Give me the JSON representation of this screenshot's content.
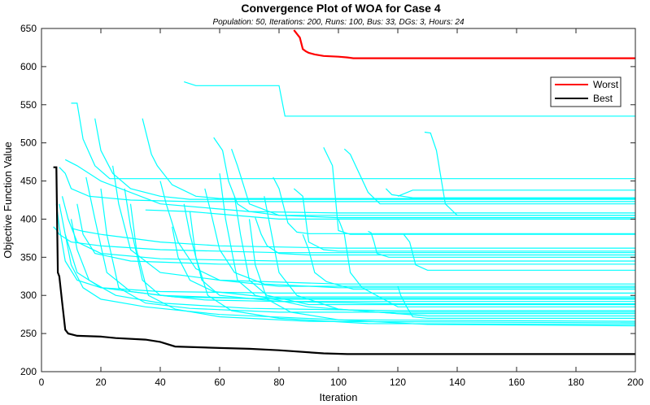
{
  "chart_data": {
    "type": "line",
    "title": "Convergence Plot of WOA for Case 4",
    "subtitle": "Population: 50, Iterations: 200, Runs: 100, Bus: 33, DGs: 3, Hours: 24",
    "xlabel": "Iteration",
    "ylabel": "Objective Function Value",
    "xlim": [
      0,
      200
    ],
    "ylim": [
      200,
      650
    ],
    "xticks": [
      "0",
      "20",
      "40",
      "60",
      "80",
      "100",
      "120",
      "140",
      "160",
      "180",
      "200"
    ],
    "yticks": [
      "200",
      "250",
      "300",
      "350",
      "400",
      "450",
      "500",
      "550",
      "600",
      "650"
    ],
    "grid": false,
    "legend_position": "top-right",
    "colors": {
      "worst": "#ff0000",
      "best": "#000000",
      "runs": "#00ffff"
    },
    "legend": [
      {
        "label": "Worst",
        "color": "#ff0000"
      },
      {
        "label": "Best",
        "color": "#000000"
      }
    ],
    "series": [
      {
        "name": "Worst",
        "color": "#ff0000",
        "x": [
          85,
          87,
          88,
          89,
          90,
          92,
          95,
          100,
          103,
          105,
          200
        ],
        "y": [
          648,
          638,
          623,
          620,
          618,
          616,
          614,
          613,
          612,
          611,
          611
        ]
      },
      {
        "name": "Best",
        "color": "#000000",
        "x": [
          4,
          5,
          5.5,
          6,
          7,
          8,
          9,
          12,
          20,
          25,
          35,
          40,
          45,
          60,
          70,
          80,
          95,
          103,
          200
        ],
        "y": [
          468,
          468,
          330,
          325,
          290,
          255,
          250,
          247,
          246,
          244,
          242,
          239,
          233,
          231,
          230,
          228,
          224,
          223,
          223
        ]
      }
    ],
    "runs": [
      {
        "x": [
          48,
          52,
          80,
          82,
          200
        ],
        "y": [
          580,
          575,
          575,
          535,
          535
        ]
      },
      {
        "x": [
          10,
          12,
          14,
          18,
          23,
          200
        ],
        "y": [
          552,
          552,
          505,
          470,
          453,
          453
        ]
      },
      {
        "x": [
          129,
          131,
          133,
          136,
          140,
          200
        ],
        "y": [
          514,
          513,
          490,
          420,
          405,
          405
        ]
      },
      {
        "x": [
          102,
          104,
          110,
          114,
          200
        ],
        "y": [
          492,
          485,
          435,
          420,
          420
        ]
      },
      {
        "x": [
          34,
          37,
          39,
          44,
          52,
          60,
          200
        ],
        "y": [
          532,
          485,
          470,
          445,
          430,
          427,
          427
        ]
      },
      {
        "x": [
          18,
          20,
          24,
          30,
          40,
          50,
          200
        ],
        "y": [
          532,
          490,
          460,
          440,
          430,
          426,
          426
        ]
      },
      {
        "x": [
          6,
          8,
          10,
          16,
          30,
          50,
          200
        ],
        "y": [
          468,
          460,
          440,
          430,
          425,
          423,
          423
        ]
      },
      {
        "x": [
          8,
          12,
          20,
          40,
          70,
          100,
          200
        ],
        "y": [
          478,
          470,
          450,
          420,
          410,
          408,
          408
        ]
      },
      {
        "x": [
          58,
          61,
          63,
          66,
          70,
          80,
          200
        ],
        "y": [
          507,
          490,
          450,
          420,
          410,
          405,
          405
        ]
      },
      {
        "x": [
          64,
          66,
          70,
          80,
          100,
          200
        ],
        "y": [
          492,
          470,
          420,
          405,
          402,
          402
        ]
      },
      {
        "x": [
          120,
          125,
          200
        ],
        "y": [
          430,
          438,
          438
        ]
      },
      {
        "x": [
          116,
          118,
          125,
          200
        ],
        "y": [
          440,
          432,
          428,
          428
        ]
      },
      {
        "x": [
          35,
          50,
          80,
          200
        ],
        "y": [
          412,
          410,
          400,
          400
        ]
      },
      {
        "x": [
          78,
          80,
          83,
          86,
          90,
          200
        ],
        "y": [
          455,
          440,
          395,
          383,
          381,
          381
        ]
      },
      {
        "x": [
          95,
          98,
          100,
          104,
          200
        ],
        "y": [
          494,
          470,
          385,
          380,
          380
        ]
      },
      {
        "x": [
          110,
          111,
          112,
          113,
          117,
          200
        ],
        "y": [
          384,
          382,
          370,
          355,
          350,
          350
        ]
      },
      {
        "x": [
          122,
          124,
          126,
          130,
          200
        ],
        "y": [
          380,
          370,
          340,
          333,
          333
        ]
      },
      {
        "x": [
          85,
          88,
          90,
          95,
          100,
          200
        ],
        "y": [
          440,
          430,
          370,
          360,
          358,
          358
        ]
      },
      {
        "x": [
          72,
          74,
          76,
          80,
          90,
          200
        ],
        "y": [
          402,
          380,
          365,
          355,
          353,
          353
        ]
      },
      {
        "x": [
          10,
          14,
          20,
          30,
          40,
          60,
          100,
          200
        ],
        "y": [
          388,
          384,
          380,
          375,
          370,
          365,
          362,
          362
        ]
      },
      {
        "x": [
          4,
          5,
          6,
          10,
          20,
          40,
          80,
          200
        ],
        "y": [
          390,
          386,
          380,
          370,
          365,
          360,
          356,
          356
        ]
      },
      {
        "x": [
          7,
          9,
          12,
          20,
          40,
          80,
          200
        ],
        "y": [
          430,
          400,
          370,
          355,
          348,
          345,
          345
        ]
      },
      {
        "x": [
          12,
          14,
          18,
          30,
          60,
          200
        ],
        "y": [
          420,
          380,
          355,
          345,
          341,
          341
        ]
      },
      {
        "x": [
          24,
          26,
          30,
          40,
          60,
          100,
          200
        ],
        "y": [
          470,
          420,
          360,
          330,
          320,
          315,
          315
        ]
      },
      {
        "x": [
          40,
          42,
          46,
          52,
          60,
          80,
          200
        ],
        "y": [
          450,
          420,
          370,
          335,
          320,
          312,
          312
        ]
      },
      {
        "x": [
          55,
          57,
          60,
          65,
          75,
          100,
          200
        ],
        "y": [
          440,
          410,
          360,
          330,
          315,
          310,
          310
        ]
      },
      {
        "x": [
          88,
          90,
          92,
          96,
          105,
          200
        ],
        "y": [
          380,
          360,
          330,
          318,
          308,
          308
        ]
      },
      {
        "x": [
          5,
          6,
          8,
          12,
          20,
          40,
          80,
          200
        ],
        "y": [
          420,
          390,
          345,
          320,
          310,
          305,
          303,
          303
        ]
      },
      {
        "x": [
          15,
          18,
          22,
          30,
          45,
          80,
          200
        ],
        "y": [
          455,
          400,
          330,
          305,
          298,
          295,
          295
        ]
      },
      {
        "x": [
          28,
          30,
          34,
          40,
          55,
          80,
          200
        ],
        "y": [
          440,
          390,
          320,
          300,
          294,
          292,
          292
        ]
      },
      {
        "x": [
          48,
          50,
          54,
          60,
          80,
          120,
          200
        ],
        "y": [
          420,
          380,
          320,
          300,
          292,
          289,
          289
        ]
      },
      {
        "x": [
          65,
          67,
          70,
          76,
          90,
          200
        ],
        "y": [
          430,
          380,
          320,
          300,
          288,
          288
        ]
      },
      {
        "x": [
          100,
          102,
          104,
          108,
          120,
          200
        ],
        "y": [
          400,
          380,
          330,
          310,
          285,
          285
        ]
      },
      {
        "x": [
          10,
          12,
          16,
          25,
          40,
          70,
          120,
          200
        ],
        "y": [
          400,
          360,
          320,
          300,
          290,
          283,
          280,
          280
        ]
      },
      {
        "x": [
          20,
          22,
          26,
          35,
          50,
          80,
          200
        ],
        "y": [
          440,
          380,
          310,
          290,
          283,
          278,
          278
        ]
      },
      {
        "x": [
          60,
          62,
          66,
          72,
          90,
          120,
          200
        ],
        "y": [
          460,
          400,
          320,
          300,
          285,
          276,
          276
        ]
      },
      {
        "x": [
          75,
          77,
          80,
          86,
          100,
          130,
          200
        ],
        "y": [
          430,
          390,
          330,
          300,
          282,
          273,
          273
        ]
      },
      {
        "x": [
          120,
          121,
          123,
          125,
          130,
          200
        ],
        "y": [
          312,
          300,
          285,
          272,
          270,
          270
        ]
      },
      {
        "x": [
          8,
          10,
          14,
          20,
          35,
          60,
          100,
          200
        ],
        "y": [
          380,
          340,
          310,
          295,
          285,
          275,
          268,
          266
        ]
      },
      {
        "x": [
          30,
          32,
          36,
          45,
          60,
          90,
          200
        ],
        "y": [
          420,
          360,
          300,
          282,
          272,
          266,
          264
        ]
      },
      {
        "x": [
          50,
          52,
          56,
          64,
          80,
          110,
          200
        ],
        "y": [
          410,
          350,
          300,
          280,
          270,
          263,
          262
        ]
      },
      {
        "x": [
          70,
          72,
          76,
          84,
          100,
          130,
          200
        ],
        "y": [
          400,
          340,
          295,
          278,
          268,
          262,
          260
        ]
      },
      {
        "x": [
          6,
          8,
          12,
          20,
          40,
          70,
          200
        ],
        "y": [
          420,
          380,
          330,
          310,
          300,
          296,
          296
        ]
      },
      {
        "x": [
          44,
          46,
          50,
          58,
          75,
          200
        ],
        "y": [
          390,
          350,
          320,
          305,
          298,
          298
        ]
      }
    ]
  }
}
